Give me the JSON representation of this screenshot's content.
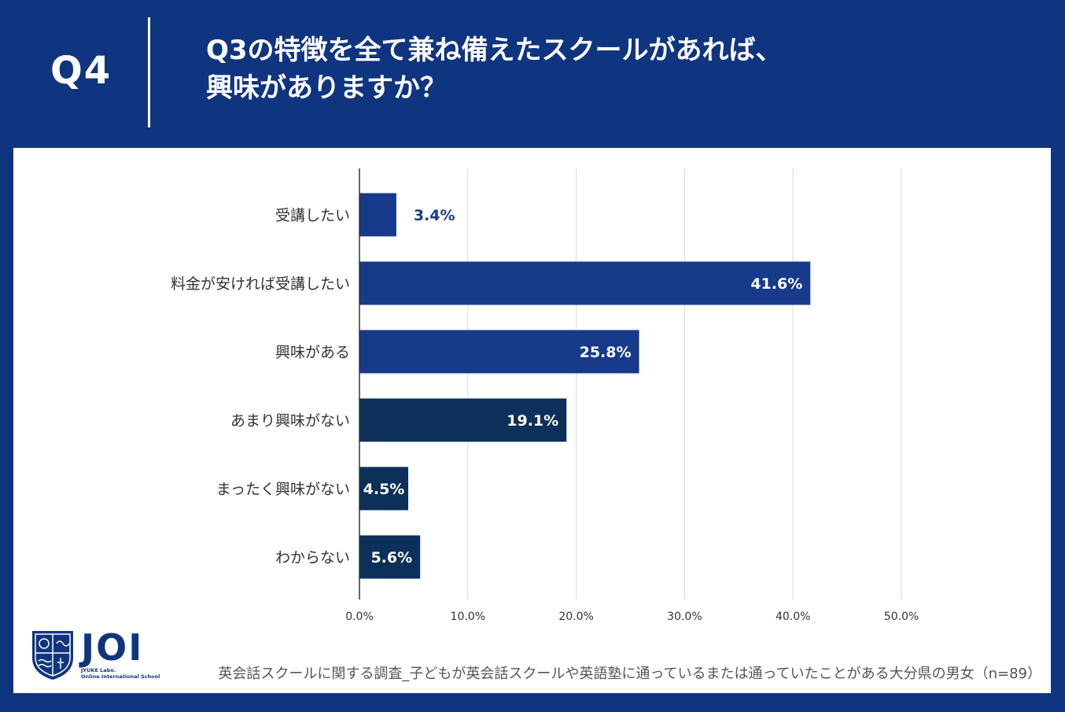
{
  "header": {
    "q_number": "Q4",
    "question_line1": "Q3の特徴を全て兼ね備えたスクールがあれば、",
    "question_line2": "興味がありますか？"
  },
  "colors": {
    "background": "#103580",
    "bar_primary": "#183a8a",
    "bar_secondary": "#0c3059",
    "grid": "#d9d9d9"
  },
  "chart_data": {
    "type": "bar",
    "orientation": "horizontal",
    "categories": [
      "受講したい",
      "料金が安ければ受講したい",
      "興味がある",
      "あまり興味がない",
      "まったく興味がない",
      "わからない"
    ],
    "values": [
      3.4,
      41.6,
      25.8,
      19.1,
      4.5,
      5.6
    ],
    "value_labels": [
      "3.4%",
      "41.6%",
      "25.8%",
      "19.1%",
      "4.5%",
      "5.6%"
    ],
    "bar_groups": [
      "primary",
      "primary",
      "primary",
      "secondary",
      "secondary",
      "secondary"
    ],
    "xlim": [
      0,
      50
    ],
    "xticks": [
      0,
      10,
      20,
      30,
      40,
      50
    ],
    "xtick_labels": [
      "0.0%",
      "10.0%",
      "20.0%",
      "30.0%",
      "40.0%",
      "50.0%"
    ],
    "grid": true,
    "title": "",
    "xlabel": "",
    "ylabel": ""
  },
  "logo": {
    "name": "JOI",
    "sub_line1": "JYUKE Labo.",
    "sub_line2": "Online International School"
  },
  "caption": "英会話スクールに関する調査_子どもが英会話スクールや英語塾に通っているまたは通っていたことがある大分県の男女（n=89）"
}
